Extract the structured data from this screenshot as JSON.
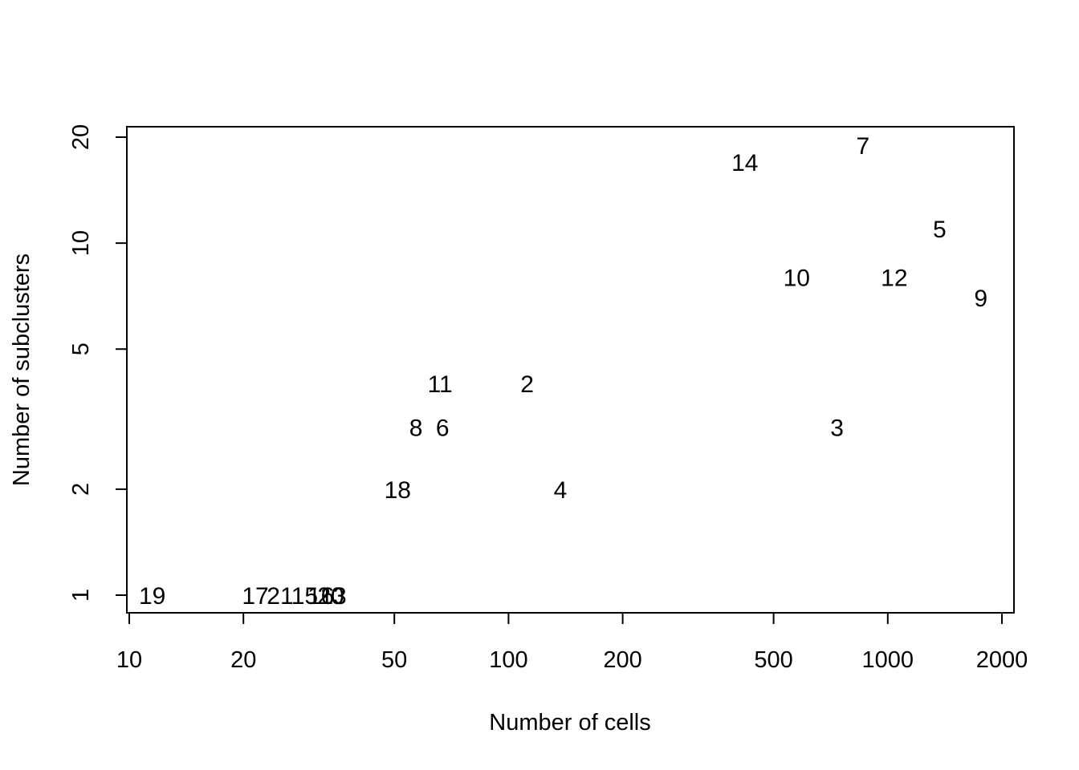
{
  "chart_data": {
    "type": "scatter",
    "marker": "text-labels",
    "title": "",
    "xlabel": "Number of cells",
    "ylabel": "Number of subclusters",
    "x_scale": "log",
    "y_scale": "log",
    "xlim": [
      10,
      2100
    ],
    "ylim": [
      0.9,
      21
    ],
    "x_ticks": [
      10,
      20,
      50,
      100,
      200,
      500,
      1000,
      2000
    ],
    "x_tick_labels": [
      "10",
      "20",
      "50",
      "100",
      "200",
      "500",
      "1000",
      "2000"
    ],
    "y_ticks": [
      1,
      2,
      5,
      10,
      20
    ],
    "y_tick_labels": [
      "1",
      "2",
      "5",
      "10",
      "20"
    ],
    "grid": false,
    "legend": "none",
    "points": [
      {
        "label": "19",
        "x": 11.5,
        "y": 1
      },
      {
        "label": "17",
        "x": 21.5,
        "y": 1
      },
      {
        "label": "21",
        "x": 25,
        "y": 1
      },
      {
        "label": "15",
        "x": 29,
        "y": 1
      },
      {
        "label": "16",
        "x": 32,
        "y": 1
      },
      {
        "label": "20",
        "x": 34,
        "y": 1
      },
      {
        "label": "13",
        "x": 34.5,
        "y": 1
      },
      {
        "label": "18",
        "x": 51,
        "y": 2
      },
      {
        "label": "8",
        "x": 57,
        "y": 3
      },
      {
        "label": "6",
        "x": 67,
        "y": 3
      },
      {
        "label": "11",
        "x": 66,
        "y": 4
      },
      {
        "label": "2",
        "x": 112,
        "y": 4
      },
      {
        "label": "4",
        "x": 137,
        "y": 2
      },
      {
        "label": "14",
        "x": 420,
        "y": 17
      },
      {
        "label": "10",
        "x": 575,
        "y": 8
      },
      {
        "label": "3",
        "x": 735,
        "y": 3
      },
      {
        "label": "7",
        "x": 860,
        "y": 19
      },
      {
        "label": "12",
        "x": 1040,
        "y": 8
      },
      {
        "label": "5",
        "x": 1370,
        "y": 11
      },
      {
        "label": "9",
        "x": 1760,
        "y": 7
      }
    ]
  }
}
